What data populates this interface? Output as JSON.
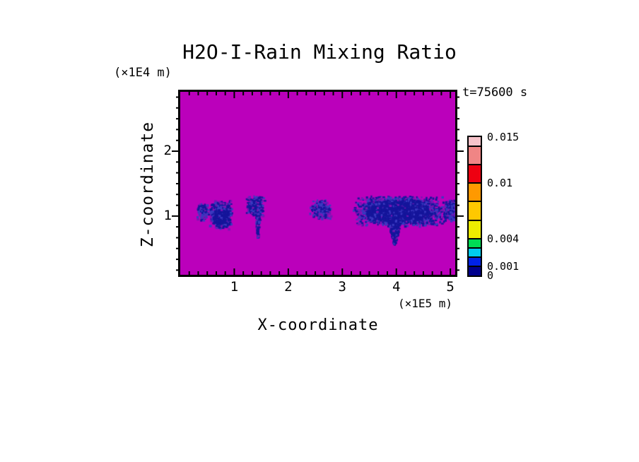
{
  "chart_data": {
    "type": "heatmap",
    "title": "H2O-I-Rain Mixing Ratio",
    "time_annotation": "t=75600 s",
    "xlabel": "X-coordinate",
    "x_units": "(×1E5 m)",
    "zlabel": "Z-coordinate",
    "z_units": "(×1E4 m)",
    "xlim": [
      0,
      5.09
    ],
    "zlim": [
      0.095,
      2.915
    ],
    "x_major_ticks": [
      1,
      2,
      3,
      4,
      5
    ],
    "z_major_ticks": [
      1,
      2
    ],
    "minor_tick_interval": 0.16667,
    "background_color": "#BB00BB",
    "speckle_palette": [
      "#15159B",
      "#3A3AC0",
      "#7A14B4"
    ],
    "colorbar": {
      "levels": [
        0,
        0.001,
        0.002,
        0.003,
        0.004,
        0.006,
        0.008,
        0.01,
        0.012,
        0.014,
        0.015
      ],
      "colors": [
        "#00008C",
        "#0022E8",
        "#00CCEE",
        "#00DD55",
        "#EDED00",
        "#FFC800",
        "#FF9900",
        "#EE0011",
        "#F08585",
        "#F6C3CA"
      ],
      "labeled_levels": [
        {
          "value": 0.015,
          "text": "0.015"
        },
        {
          "value": 0.01,
          "text": "0.01"
        },
        {
          "value": 0.004,
          "text": "0.004"
        },
        {
          "value": 0.001,
          "text": "0.001"
        },
        {
          "value": 0,
          "text": "0"
        }
      ]
    },
    "features": [
      {
        "x": [
          0.28,
          0.52
        ],
        "z": [
          0.93,
          1.22
        ],
        "count": 140,
        "weights": [
          0.35,
          0.4,
          0.25
        ]
      },
      {
        "x": [
          0.5,
          0.96
        ],
        "z": [
          0.8,
          1.26
        ],
        "count": 520,
        "weights": [
          0.5,
          0.32,
          0.18
        ]
      },
      {
        "x": [
          0.58,
          0.88
        ],
        "z": [
          0.84,
          1.12
        ],
        "count": 330,
        "weights": [
          0.85,
          0.12,
          0.03
        ]
      },
      {
        "x": [
          1.2,
          1.55
        ],
        "z": [
          1.0,
          1.33
        ],
        "count": 270,
        "weights": [
          0.55,
          0.3,
          0.15
        ]
      },
      {
        "x": [
          1.37,
          1.47
        ],
        "z": [
          0.68,
          1.05
        ],
        "count": 140,
        "weights": [
          0.7,
          0.2,
          0.1
        ],
        "taper": true
      },
      {
        "x": [
          2.38,
          2.8
        ],
        "z": [
          0.95,
          1.28
        ],
        "count": 230,
        "weights": [
          0.45,
          0.35,
          0.2
        ]
      },
      {
        "x": [
          3.18,
          4.88
        ],
        "z": [
          0.85,
          1.33
        ],
        "count": 2400,
        "weights": [
          0.5,
          0.3,
          0.2
        ]
      },
      {
        "x": [
          3.4,
          4.62
        ],
        "z": [
          0.9,
          1.26
        ],
        "count": 1700,
        "weights": [
          0.85,
          0.12,
          0.03
        ]
      },
      {
        "x": [
          3.82,
          4.08
        ],
        "z": [
          0.58,
          0.95
        ],
        "count": 260,
        "weights": [
          0.8,
          0.15,
          0.05
        ],
        "taper": true
      },
      {
        "x": [
          4.84,
          5.09
        ],
        "z": [
          0.93,
          1.27
        ],
        "count": 240,
        "weights": [
          0.5,
          0.3,
          0.2
        ]
      }
    ]
  }
}
